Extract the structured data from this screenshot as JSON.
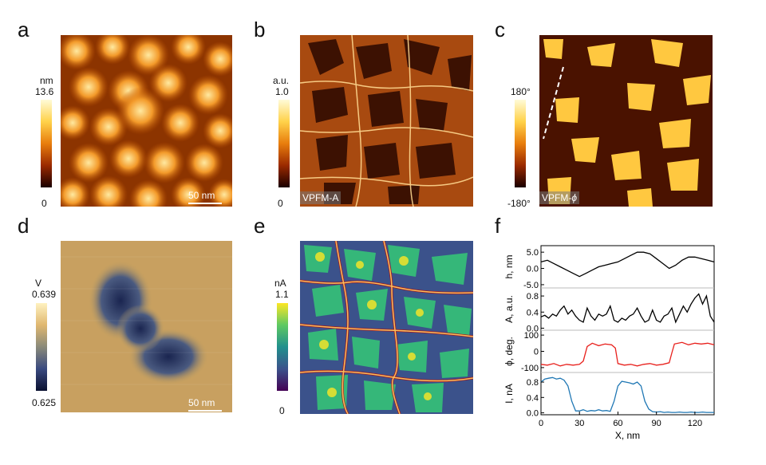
{
  "panels": {
    "a": {
      "letter": "a",
      "cb_unit": "nm",
      "cb_max": "13.6",
      "cb_min": "0",
      "scale": "50 nm"
    },
    "b": {
      "letter": "b",
      "cb_unit": "a.u.",
      "cb_max": "1.0",
      "cb_min": "0",
      "tag": "VPFM-A"
    },
    "c": {
      "letter": "c",
      "cb_max": "180°",
      "cb_min": "-180°",
      "tag_prefix": "VPFM-",
      "tag_symbol": "ϕ"
    },
    "d": {
      "letter": "d",
      "cb_unit": "V",
      "cb_max": "0.639",
      "cb_min": "0.625",
      "scale": "50 nm"
    },
    "e": {
      "letter": "e",
      "cb_unit": "nA",
      "cb_max": "1.1",
      "cb_min": "0"
    },
    "f": {
      "letter": "f"
    }
  },
  "colors": {
    "heat_dark": "#1a0000",
    "heat_mid": "#c85a00",
    "heat_light": "#fff5c0",
    "div_dark": "#101a3a",
    "div_light": "#ffe6a0",
    "vir_low": "#440154",
    "vir_mid": "#21908d",
    "vir_high": "#fde725",
    "line_h": "#000000",
    "line_A": "#000000",
    "line_phi": "#e8201c",
    "line_I": "#1f77b4"
  },
  "chart_data": {
    "type": "line",
    "xlabel": "X, nm",
    "x_ticks": [
      0,
      30,
      60,
      90,
      120
    ],
    "xlim": [
      0,
      135
    ],
    "subplots": [
      {
        "ylabel": "h, nm",
        "ylim": [
          -6,
          7
        ],
        "yticks": [
          "5.0",
          "0.0",
          "-5.0"
        ],
        "ytick_vals": [
          5,
          0,
          -5
        ],
        "x": [
          0,
          5,
          10,
          15,
          20,
          25,
          30,
          35,
          40,
          45,
          50,
          55,
          60,
          65,
          70,
          75,
          80,
          85,
          90,
          95,
          100,
          105,
          110,
          115,
          120,
          125,
          130,
          135
        ],
        "y": [
          2,
          2.5,
          1.5,
          0.5,
          -0.5,
          -1.5,
          -2.5,
          -1.5,
          -0.5,
          0.5,
          1,
          1.5,
          2,
          3,
          4,
          5,
          5,
          4.5,
          3,
          1.5,
          0,
          1,
          2.5,
          3.5,
          3.5,
          3,
          2.5,
          2
        ]
      },
      {
        "ylabel": "A, a.u.",
        "ylim": [
          -0.05,
          1.0
        ],
        "yticks": [
          "0.8",
          "0.4",
          "0.0"
        ],
        "ytick_vals": [
          0.8,
          0.4,
          0.0
        ],
        "x": [
          0,
          3,
          6,
          9,
          12,
          15,
          18,
          21,
          24,
          27,
          30,
          33,
          36,
          39,
          42,
          45,
          48,
          51,
          54,
          57,
          60,
          63,
          66,
          69,
          72,
          75,
          78,
          81,
          84,
          87,
          90,
          93,
          96,
          99,
          102,
          105,
          108,
          111,
          114,
          117,
          120,
          123,
          126,
          129,
          132,
          135
        ],
        "y": [
          0.28,
          0.32,
          0.25,
          0.35,
          0.3,
          0.45,
          0.55,
          0.35,
          0.45,
          0.3,
          0.2,
          0.15,
          0.5,
          0.3,
          0.2,
          0.35,
          0.3,
          0.35,
          0.55,
          0.2,
          0.15,
          0.25,
          0.2,
          0.3,
          0.35,
          0.5,
          0.3,
          0.15,
          0.2,
          0.45,
          0.2,
          0.15,
          0.3,
          0.35,
          0.5,
          0.15,
          0.35,
          0.55,
          0.4,
          0.6,
          0.75,
          0.85,
          0.6,
          0.8,
          0.3,
          0.15
        ]
      },
      {
        "ylabel": "ϕ, deg.",
        "ylim": [
          -130,
          130
        ],
        "yticks": [
          "100",
          "0",
          "-100"
        ],
        "ytick_vals": [
          100,
          0,
          -100
        ],
        "x": [
          0,
          5,
          10,
          15,
          20,
          25,
          30,
          33,
          36,
          40,
          45,
          50,
          55,
          58,
          60,
          65,
          70,
          75,
          80,
          85,
          90,
          95,
          100,
          102,
          104,
          110,
          115,
          120,
          125,
          130,
          135
        ],
        "y": [
          -80,
          -85,
          -75,
          -90,
          -80,
          -85,
          -80,
          -60,
          30,
          50,
          35,
          45,
          40,
          20,
          -75,
          -85,
          -80,
          -90,
          -80,
          -75,
          -85,
          -80,
          -70,
          -10,
          45,
          55,
          40,
          50,
          45,
          50,
          40
        ]
      },
      {
        "ylabel": "I, nA",
        "ylim": [
          -0.05,
          1.05
        ],
        "yticks": [
          "0.8",
          "0.4",
          "0.0"
        ],
        "ytick_vals": [
          0.8,
          0.4,
          0.0
        ],
        "x": [
          0,
          3,
          6,
          9,
          12,
          15,
          18,
          21,
          24,
          27,
          30,
          33,
          36,
          39,
          42,
          45,
          48,
          51,
          54,
          57,
          60,
          63,
          66,
          69,
          72,
          75,
          78,
          81,
          84,
          87,
          90,
          93,
          96,
          99,
          102,
          105,
          108,
          111,
          114,
          117,
          120,
          123,
          126,
          129,
          132,
          135
        ],
        "y": [
          0.8,
          0.88,
          0.9,
          0.92,
          0.88,
          0.9,
          0.85,
          0.7,
          0.3,
          0.05,
          0.05,
          0.08,
          0.04,
          0.06,
          0.05,
          0.08,
          0.05,
          0.06,
          0.04,
          0.3,
          0.7,
          0.82,
          0.8,
          0.78,
          0.75,
          0.8,
          0.7,
          0.3,
          0.1,
          0.03,
          0.02,
          0.03,
          0.01,
          0.02,
          0.01,
          0.01,
          0.02,
          0.01,
          0.01,
          0.02,
          0.01,
          0.01,
          0.02,
          0.01,
          0.01,
          0.01
        ]
      }
    ]
  }
}
